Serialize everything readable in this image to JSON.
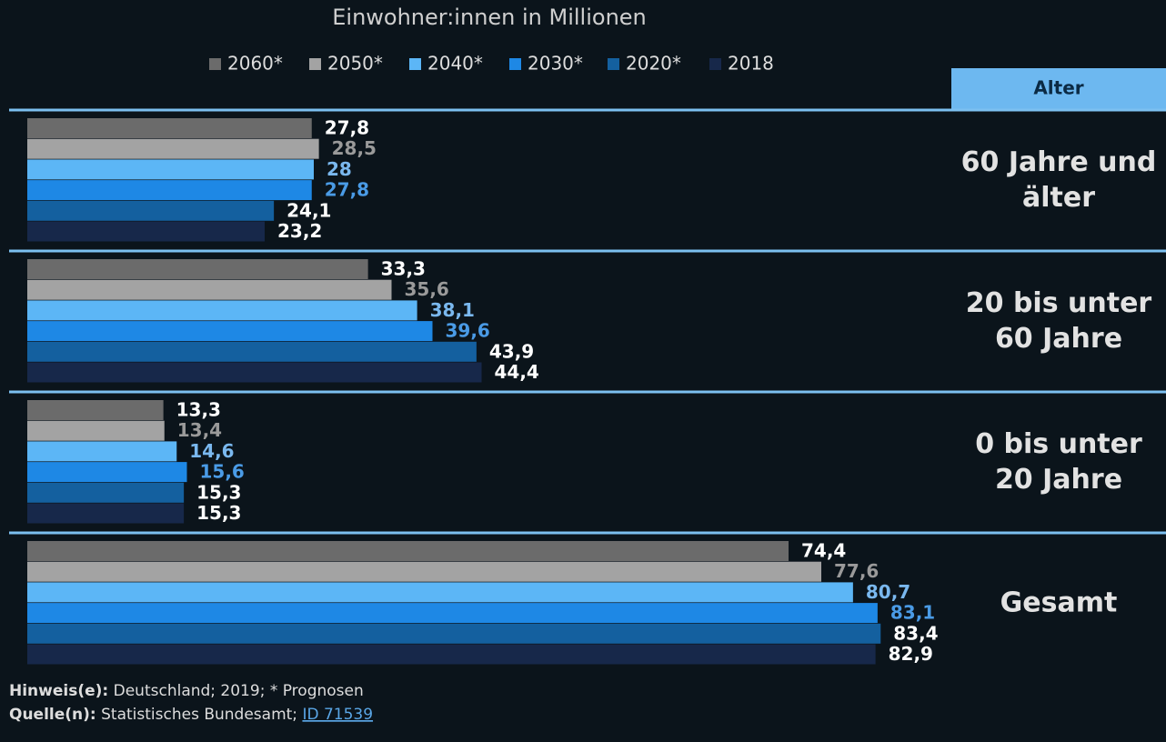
{
  "chart_data": {
    "type": "bar",
    "orientation": "horizontal",
    "title": "Einwohner:innen in Millionen",
    "category_header": "Alter",
    "categories": [
      "60 Jahre und älter",
      "20 bis unter 60 Jahre",
      "0 bis unter 20 Jahre",
      "Gesamt"
    ],
    "series": [
      {
        "name": "2060*",
        "color": "#6b6b6b",
        "label_color": "#ffffff",
        "values": [
          27.8,
          33.3,
          13.3,
          74.4
        ],
        "value_labels": [
          "27,8",
          "33,3",
          "13,3",
          "74,4"
        ]
      },
      {
        "name": "2050*",
        "color": "#a3a3a3",
        "label_color": "#9a9a9a",
        "values": [
          28.5,
          35.6,
          13.4,
          77.6
        ],
        "value_labels": [
          "28,5",
          "35,6",
          "13,4",
          "77,6"
        ]
      },
      {
        "name": "2040*",
        "color": "#5cb6f6",
        "label_color": "#7ab8ef",
        "values": [
          28,
          38.1,
          14.6,
          80.7
        ],
        "value_labels": [
          "28",
          "38,1",
          "14,6",
          "80,7"
        ]
      },
      {
        "name": "2030*",
        "color": "#1e88e5",
        "label_color": "#4a9be6",
        "values": [
          27.8,
          39.6,
          15.6,
          83.1
        ],
        "value_labels": [
          "27,8",
          "39,6",
          "15,6",
          "83,1"
        ]
      },
      {
        "name": "2020*",
        "color": "#14609f",
        "label_color": "#ffffff",
        "values": [
          24.1,
          43.9,
          15.3,
          83.4
        ],
        "value_labels": [
          "24,1",
          "43,9",
          "15,3",
          "83,4"
        ]
      },
      {
        "name": "2018",
        "color": "#17284a",
        "label_color": "#ffffff",
        "values": [
          23.2,
          44.4,
          15.3,
          82.9
        ],
        "value_labels": [
          "23,2",
          "44,4",
          "15,3",
          "82,9"
        ]
      }
    ],
    "notes": {
      "note_label": "Hinweis(e):",
      "note_text": "Deutschland; 2019; * Prognosen",
      "source_label": "Quelle(n):",
      "source_text": "Statistisches Bundesamt;",
      "source_link": "ID 71539"
    }
  }
}
